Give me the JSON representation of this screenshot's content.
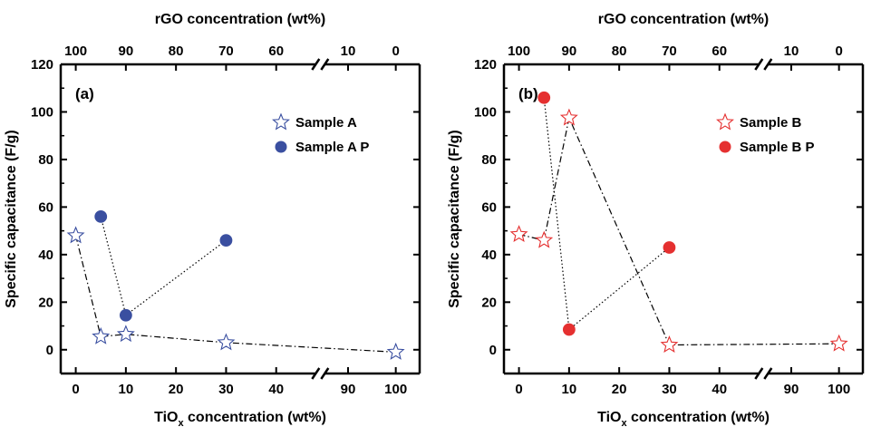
{
  "chart_data": [
    {
      "type": "scatter",
      "panel_label": "(a)",
      "xlabel_main": "TiO",
      "xlabel_sub": "x",
      "xlabel_rest": " concentration (wt%)",
      "x2label": "rGO concentration (wt%)",
      "ylabel": "Specific capacitance (F/g)",
      "ylim": [
        -10,
        120
      ],
      "yticks": [
        0,
        20,
        40,
        60,
        80,
        100,
        120
      ],
      "xticks": [
        0,
        10,
        20,
        30,
        40,
        90,
        100
      ],
      "x2ticks": [
        "100",
        "90",
        "80",
        "70",
        "60",
        "10",
        "0"
      ],
      "legend_position": "top-right",
      "series": [
        {
          "name": "Sample A",
          "marker": "star",
          "color": "#3a4fa0",
          "line": "dashdot",
          "x": [
            0,
            5,
            10,
            30,
            100
          ],
          "y": [
            48,
            5.5,
            6.5,
            3,
            -1
          ]
        },
        {
          "name": "Sample A P",
          "marker": "circle",
          "color": "#3a4fa0",
          "line": "dotted",
          "x": [
            5,
            10,
            30
          ],
          "y": [
            56,
            14.5,
            46
          ]
        }
      ]
    },
    {
      "type": "scatter",
      "panel_label": "(b)",
      "xlabel_main": "TiO",
      "xlabel_sub": "x",
      "xlabel_rest": " concentration (wt%)",
      "x2label": "rGO concentration (wt%)",
      "ylabel": "Specific capacitance (F/g)",
      "ylim": [
        -10,
        120
      ],
      "yticks": [
        0,
        20,
        40,
        60,
        80,
        100,
        120
      ],
      "xticks": [
        0,
        10,
        20,
        30,
        40,
        90,
        100
      ],
      "x2ticks": [
        "100",
        "90",
        "80",
        "70",
        "60",
        "10",
        "0"
      ],
      "legend_position": "top-right",
      "series": [
        {
          "name": "Sample B",
          "marker": "star",
          "color": "#e53030",
          "line": "dashdot",
          "x": [
            0,
            5,
            10,
            30,
            100
          ],
          "y": [
            48.5,
            46,
            97.5,
            2,
            2.5
          ]
        },
        {
          "name": "Sample B P",
          "marker": "circle",
          "color": "#e53030",
          "line": "dotted",
          "x": [
            5,
            10,
            30
          ],
          "y": [
            106,
            8.5,
            43
          ]
        }
      ]
    }
  ]
}
